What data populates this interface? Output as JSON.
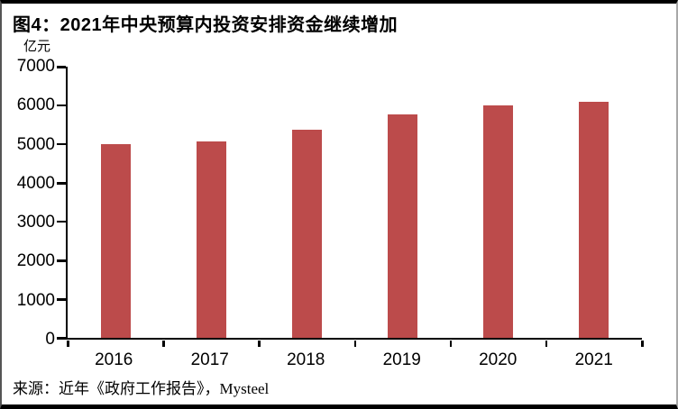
{
  "figure": {
    "title": "图4：2021年中央预算内投资安排资金继续增加",
    "unit_label": "亿元",
    "source": "来源：近年《政府工作报告》，Mysteel"
  },
  "chart_data": {
    "type": "bar",
    "title": "图4：2021年中央预算内投资安排资金继续增加",
    "categories": [
      "2016",
      "2017",
      "2018",
      "2019",
      "2020",
      "2021"
    ],
    "values": [
      5000,
      5076,
      5376,
      5776,
      6000,
      6100
    ],
    "xlabel": "",
    "ylabel": "亿元",
    "ylim": [
      0,
      7000
    ],
    "y_ticks": [
      0,
      1000,
      2000,
      3000,
      4000,
      5000,
      6000,
      7000
    ],
    "bar_color": "#BC4B4B",
    "axis_color": "#000000",
    "grid": false,
    "legend": false,
    "source": "来源：近年《政府工作报告》，Mysteel"
  }
}
